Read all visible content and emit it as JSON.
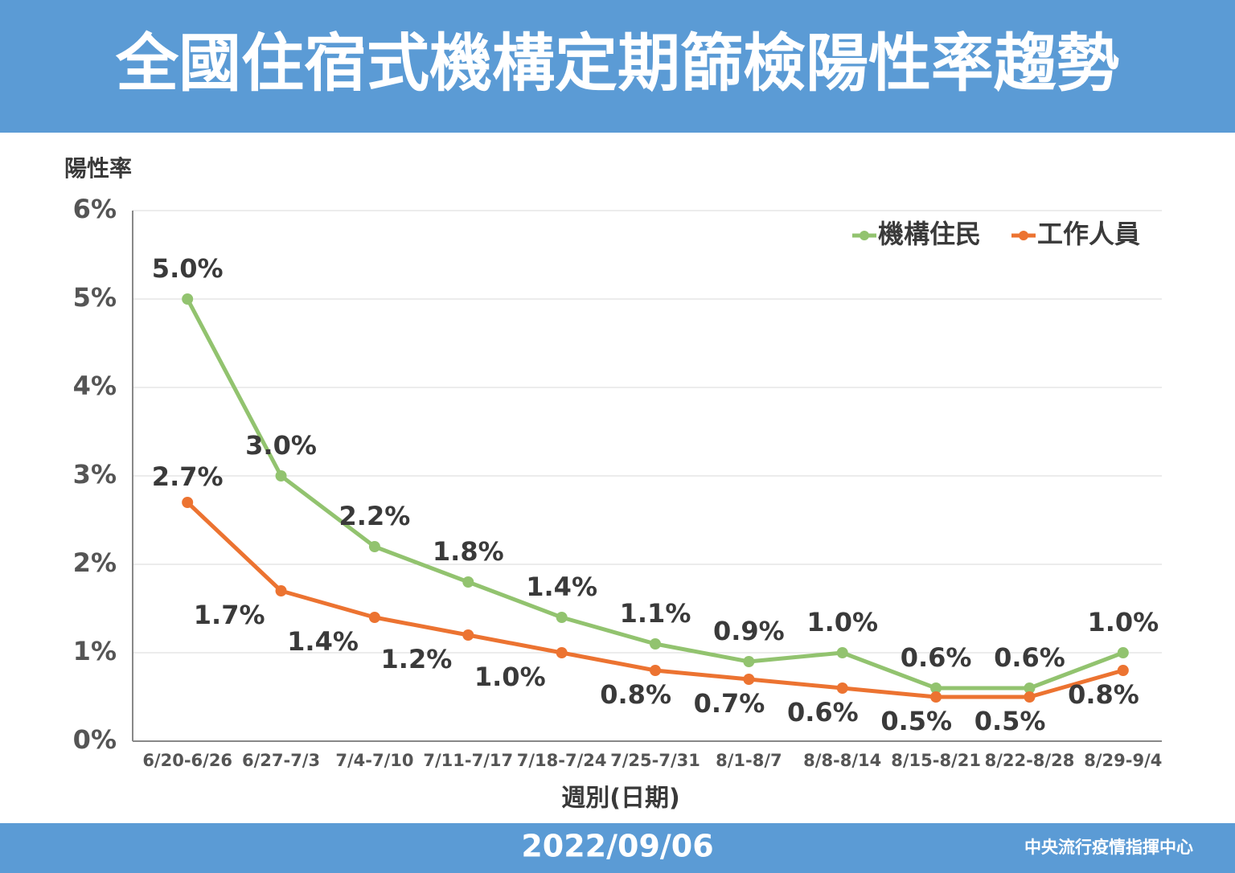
{
  "header": {
    "title": "全國住宿式機構定期篩檢陽性率趨勢"
  },
  "chart_data": {
    "type": "line",
    "y_axis_title": "陽性率",
    "x_axis_title": "週別(日期)",
    "categories": [
      "6/20-6/26",
      "6/27-7/3",
      "7/4-7/10",
      "7/11-7/17",
      "7/18-7/24",
      "7/25-7/31",
      "8/1-8/7",
      "8/8-8/14",
      "8/15-8/21",
      "8/22-8/28",
      "8/29-9/4"
    ],
    "series": [
      {
        "name": "機構住民",
        "color": "#92c36f",
        "values": [
          5.0,
          3.0,
          2.2,
          1.8,
          1.4,
          1.1,
          0.9,
          1.0,
          0.6,
          0.6,
          1.0
        ],
        "value_labels": [
          "5.0%",
          "3.0%",
          "2.2%",
          "1.8%",
          "1.4%",
          "1.1%",
          "0.9%",
          "1.0%",
          "0.6%",
          "0.6%",
          "1.0%"
        ]
      },
      {
        "name": "工作人員",
        "color": "#ec7331",
        "values": [
          2.7,
          1.7,
          1.4,
          1.2,
          1.0,
          0.8,
          0.7,
          0.6,
          0.5,
          0.5,
          0.8
        ],
        "value_labels": [
          "2.7%",
          "1.7%",
          "1.4%",
          "1.2%",
          "1.0%",
          "0.8%",
          "0.7%",
          "0.6%",
          "0.5%",
          "0.5%",
          "0.8%"
        ]
      }
    ],
    "ylim": [
      0,
      6
    ],
    "yticks": [
      {
        "value": 0,
        "label": "0%"
      },
      {
        "value": 1,
        "label": "1%"
      },
      {
        "value": 2,
        "label": "2%"
      },
      {
        "value": 3,
        "label": "3%"
      },
      {
        "value": 4,
        "label": "4%"
      },
      {
        "value": 5,
        "label": "5%"
      },
      {
        "value": 6,
        "label": "6%"
      }
    ],
    "grid": true,
    "legend": "top-right"
  },
  "footer": {
    "date": "2022/09/06",
    "source": "中央流行疫情指揮中心"
  }
}
